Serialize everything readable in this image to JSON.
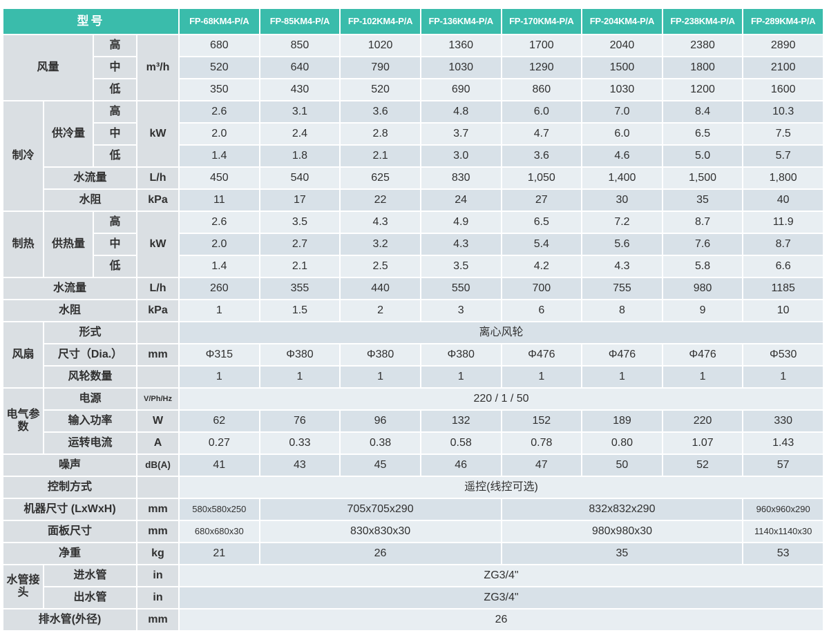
{
  "colors": {
    "header_bg": "#3ABCAB",
    "header_text": "#FFFFFF",
    "label_bg": "#DADFE3",
    "row_light": "#E8EEF2",
    "row_dark": "#D8E1E8",
    "text": "#303030"
  },
  "table": {
    "corner_label": "型号",
    "models": [
      "FP-68KM4-P/A",
      "FP-85KM4-P/A",
      "FP-102KM4-P/A",
      "FP-136KM4-P/A",
      "FP-170KM4-P/A",
      "FP-204KM4-P/A",
      "FP-238KM4-P/A",
      "FP-289KM4-P/A"
    ],
    "rows": [
      {
        "labels": [
          {
            "t": "风量",
            "cols": "A-B",
            "rs": 3
          },
          {
            "t": "高",
            "cols": "C"
          }
        ],
        "unit": "m³/h",
        "unit_rs": 3,
        "values": [
          "680",
          "850",
          "1020",
          "1360",
          "1700",
          "2040",
          "2380",
          "2890"
        ]
      },
      {
        "labels": [
          {
            "t": "中",
            "cols": "C"
          }
        ],
        "values": [
          "520",
          "640",
          "790",
          "1030",
          "1290",
          "1500",
          "1800",
          "2100"
        ]
      },
      {
        "labels": [
          {
            "t": "低",
            "cols": "C"
          }
        ],
        "values": [
          "350",
          "430",
          "520",
          "690",
          "860",
          "1030",
          "1200",
          "1600"
        ]
      },
      {
        "labels": [
          {
            "t": "制冷",
            "cols": "A",
            "rs": 5
          },
          {
            "t": "供冷量",
            "cols": "B",
            "rs": 3
          },
          {
            "t": "高",
            "cols": "C"
          }
        ],
        "unit": "kW",
        "unit_rs": 3,
        "values": [
          "2.6",
          "3.1",
          "3.6",
          "4.8",
          "6.0",
          "7.0",
          "8.4",
          "10.3"
        ]
      },
      {
        "labels": [
          {
            "t": "中",
            "cols": "C"
          }
        ],
        "values": [
          "2.0",
          "2.4",
          "2.8",
          "3.7",
          "4.7",
          "6.0",
          "6.5",
          "7.5"
        ]
      },
      {
        "labels": [
          {
            "t": "低",
            "cols": "C"
          }
        ],
        "values": [
          "1.4",
          "1.8",
          "2.1",
          "3.0",
          "3.6",
          "4.6",
          "5.0",
          "5.7"
        ]
      },
      {
        "labels": [
          {
            "t": "水流量",
            "cols": "B-C"
          }
        ],
        "unit": "L/h",
        "values": [
          "450",
          "540",
          "625",
          "830",
          "1,050",
          "1,400",
          "1,500",
          "1,800"
        ]
      },
      {
        "labels": [
          {
            "t": "水阻",
            "cols": "B-C"
          }
        ],
        "unit": "kPa",
        "values": [
          "11",
          "17",
          "22",
          "24",
          "27",
          "30",
          "35",
          "40"
        ]
      },
      {
        "labels": [
          {
            "t": "制热",
            "cols": "A",
            "rs": 3
          },
          {
            "t": "供热量",
            "cols": "B",
            "rs": 3
          },
          {
            "t": "高",
            "cols": "C"
          }
        ],
        "unit": "kW",
        "unit_rs": 3,
        "values": [
          "2.6",
          "3.5",
          "4.3",
          "4.9",
          "6.5",
          "7.2",
          "8.7",
          "11.9"
        ]
      },
      {
        "labels": [
          {
            "t": "中",
            "cols": "C"
          }
        ],
        "values": [
          "2.0",
          "2.7",
          "3.2",
          "4.3",
          "5.4",
          "5.6",
          "7.6",
          "8.7"
        ]
      },
      {
        "labels": [
          {
            "t": "低",
            "cols": "C"
          }
        ],
        "values": [
          "1.4",
          "2.1",
          "2.5",
          "3.5",
          "4.2",
          "4.3",
          "5.8",
          "6.6"
        ]
      },
      {
        "labels": [
          {
            "t": "水流量",
            "cols": "A-C"
          }
        ],
        "unit": "L/h",
        "values": [
          "260",
          "355",
          "440",
          "550",
          "700",
          "755",
          "980",
          "1185"
        ]
      },
      {
        "labels": [
          {
            "t": "水阻",
            "cols": "A-C"
          }
        ],
        "unit": "kPa",
        "values": [
          "1",
          "1.5",
          "2",
          "3",
          "6",
          "8",
          "9",
          "10"
        ]
      },
      {
        "labels": [
          {
            "t": "风扇",
            "cols": "A",
            "rs": 3
          },
          {
            "t": "形式",
            "cols": "B-C"
          }
        ],
        "unit": "",
        "values": [
          {
            "t": "离心风轮",
            "span": 8
          }
        ]
      },
      {
        "labels": [
          {
            "t": "尺寸（Dia.）",
            "cols": "B-C"
          }
        ],
        "unit": "mm",
        "values": [
          "Φ315",
          "Φ380",
          "Φ380",
          "Φ380",
          "Φ476",
          "Φ476",
          "Φ476",
          "Φ530"
        ]
      },
      {
        "labels": [
          {
            "t": "风轮数量",
            "cols": "B-C"
          }
        ],
        "unit": "",
        "values": [
          "1",
          "1",
          "1",
          "1",
          "1",
          "1",
          "1",
          "1"
        ]
      },
      {
        "labels": [
          {
            "t": "电气参数",
            "cols": "A",
            "rs": 3
          },
          {
            "t": "电源",
            "cols": "B-C"
          }
        ],
        "unit": "V/Ph/Hz",
        "values": [
          {
            "t": "220 / 1 / 50",
            "span": 8
          }
        ]
      },
      {
        "labels": [
          {
            "t": "输入功率",
            "cols": "B-C"
          }
        ],
        "unit": "W",
        "values": [
          "62",
          "76",
          "96",
          "132",
          "152",
          "189",
          "220",
          "330"
        ]
      },
      {
        "labels": [
          {
            "t": "运转电流",
            "cols": "B-C"
          }
        ],
        "unit": "A",
        "values": [
          "0.27",
          "0.33",
          "0.38",
          "0.58",
          "0.78",
          "0.80",
          "1.07",
          "1.43"
        ]
      },
      {
        "labels": [
          {
            "t": "噪声",
            "cols": "A-C"
          }
        ],
        "unit": "dB(A)",
        "values": [
          "41",
          "43",
          "45",
          "46",
          "47",
          "50",
          "52",
          "57"
        ]
      },
      {
        "labels": [
          {
            "t": "控制方式",
            "cols": "A-C"
          }
        ],
        "unit": "",
        "values": [
          {
            "t": "遥控(线控可选)",
            "span": 8
          }
        ]
      },
      {
        "labels": [
          {
            "t": "机器尺寸 (LxWxH)",
            "cols": "A-C"
          }
        ],
        "unit": "mm",
        "values": [
          {
            "t": "580x580x250",
            "span": 1
          },
          {
            "t": "705x705x290",
            "span": 3
          },
          {
            "t": "832x832x290",
            "span": 3
          },
          {
            "t": "960x960x290",
            "span": 1
          }
        ]
      },
      {
        "labels": [
          {
            "t": "面板尺寸",
            "cols": "A-C"
          }
        ],
        "unit": "mm",
        "values": [
          {
            "t": "680x680x30",
            "span": 1
          },
          {
            "t": "830x830x30",
            "span": 3
          },
          {
            "t": "980x980x30",
            "span": 3
          },
          {
            "t": "1140x1140x30",
            "span": 1
          }
        ]
      },
      {
        "labels": [
          {
            "t": "净重",
            "cols": "A-C"
          }
        ],
        "unit": "kg",
        "values": [
          {
            "t": "21",
            "span": 1
          },
          {
            "t": "26",
            "span": 3
          },
          {
            "t": "35",
            "span": 3
          },
          {
            "t": "53",
            "span": 1
          }
        ]
      },
      {
        "labels": [
          {
            "t": "水管接头",
            "cols": "A",
            "rs": 2
          },
          {
            "t": "进水管",
            "cols": "B-C"
          }
        ],
        "unit": "in",
        "values": [
          {
            "t": "ZG3/4\"",
            "span": 8
          }
        ]
      },
      {
        "labels": [
          {
            "t": "出水管",
            "cols": "B-C"
          }
        ],
        "unit": "in",
        "values": [
          {
            "t": "ZG3/4\"",
            "span": 8
          }
        ]
      },
      {
        "labels": [
          {
            "t": "排水管(外径)",
            "cols": "A-C"
          }
        ],
        "unit": "mm",
        "values": [
          {
            "t": "26",
            "span": 8
          }
        ]
      }
    ]
  }
}
